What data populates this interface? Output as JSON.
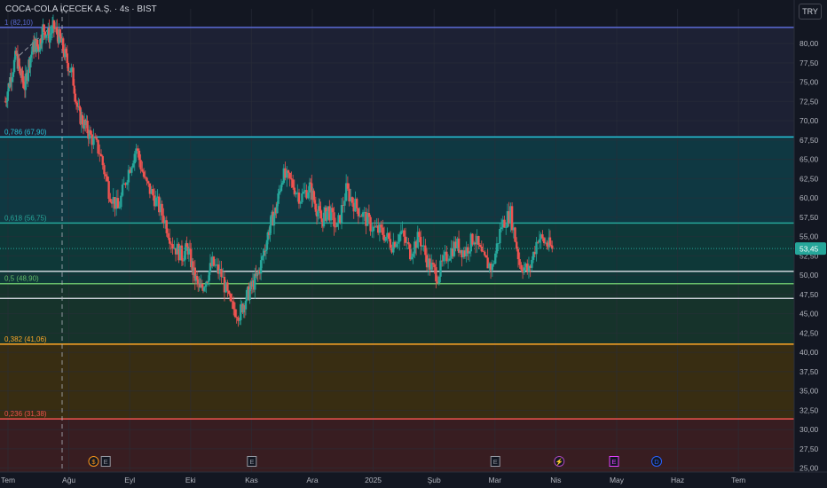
{
  "header": {
    "symbol_title": "COCA-COLA İÇECEK A.Ş. · 4s · BIST",
    "currency_label": "TRY"
  },
  "chart_data": {
    "type": "candlestick",
    "price_axis": {
      "range": [
        24.5,
        84.5
      ],
      "ticks": [
        25,
        27.5,
        30,
        32.5,
        35,
        37.5,
        40,
        42.5,
        45,
        47.5,
        50,
        52.5,
        55,
        57.5,
        60,
        62.5,
        65,
        67.5,
        70,
        72.5,
        75,
        77.5,
        80
      ],
      "tick_labels": [
        "25,00",
        "27,50",
        "30,00",
        "32,50",
        "35,00",
        "37,50",
        "40,00",
        "42,50",
        "45,00",
        "47,50",
        "50,00",
        "52,50",
        "55,00",
        "57,50",
        "60,00",
        "62,50",
        "65,00",
        "67,50",
        "70,00",
        "72,50",
        "75,00",
        "77,50",
        "80,00"
      ],
      "last_price": 53.45,
      "last_price_label": "53,45"
    },
    "time_axis": {
      "labels": [
        "Tem",
        "Ağu",
        "Eyl",
        "Eki",
        "Kas",
        "Ara",
        "2025",
        "Şub",
        "Mar",
        "Nis",
        "May",
        "Haz",
        "Tem"
      ],
      "label_positions_month_index": [
        0,
        1,
        2,
        3,
        4,
        5,
        6,
        7,
        8,
        9,
        10,
        11,
        12
      ]
    },
    "fibonacci": [
      {
        "level": 1,
        "price": 82.1,
        "label": "1 (82,10)",
        "color": "#5b6bd6"
      },
      {
        "level": 0.786,
        "price": 67.9,
        "label": "0,786 (67,90)",
        "color": "#26c6da"
      },
      {
        "level": 0.618,
        "price": 56.75,
        "label": "0,618 (56,75)",
        "color": "#26a69a"
      },
      {
        "level": 0.5,
        "price": 48.9,
        "label": "0,5 (48,90)",
        "color": "#66bb6a"
      },
      {
        "level": 0.382,
        "price": 41.06,
        "label": "0,382 (41,06)",
        "color": "#ffa726"
      },
      {
        "level": 0.236,
        "price": 31.38,
        "label": "0,236 (31,38)",
        "color": "#ef5350"
      }
    ],
    "support_lines": [
      50.5,
      47.0
    ],
    "close_series": {
      "month_index": [
        0,
        0.08,
        0.18,
        0.25,
        0.32,
        0.4,
        0.48,
        0.55,
        0.62,
        0.72,
        0.8,
        0.9,
        1.0,
        1.1,
        1.2,
        1.3,
        1.4,
        1.55,
        1.7,
        1.85,
        2.0,
        2.15,
        2.3,
        2.45,
        2.6,
        2.75,
        2.9,
        3.0,
        3.1,
        3.2,
        3.3,
        3.4,
        3.55,
        3.7,
        3.85,
        3.95,
        4.05,
        4.15,
        4.25,
        4.35,
        4.45,
        4.55,
        4.7,
        4.85,
        5.0,
        5.1,
        5.2,
        5.3,
        5.45,
        5.6,
        5.75,
        5.9,
        6.05,
        6.2,
        6.35,
        6.5,
        6.65,
        6.8,
        6.95,
        7.1,
        7.25,
        7.4,
        7.55,
        7.7,
        7.85,
        8.0,
        8.15,
        8.3,
        8.45,
        8.6,
        8.75,
        8.9,
        9.0
      ],
      "close": [
        72.5,
        75.5,
        78.5,
        76.0,
        74.5,
        78.0,
        80.0,
        79.5,
        82.0,
        81.0,
        82.1,
        80.5,
        78.0,
        76.0,
        71.0,
        69.5,
        68.0,
        66.0,
        61.0,
        58.5,
        63.0,
        66.5,
        62.0,
        60.0,
        57.5,
        54.0,
        52.5,
        53.5,
        50.0,
        48.0,
        49.5,
        51.5,
        50.0,
        46.0,
        45.0,
        47.0,
        48.5,
        50.0,
        53.0,
        56.5,
        58.5,
        63.0,
        62.0,
        60.0,
        61.5,
        59.0,
        57.0,
        58.5,
        56.0,
        61.0,
        59.0,
        57.5,
        56.0,
        55.5,
        54.0,
        55.5,
        53.0,
        55.0,
        51.5,
        50.0,
        52.5,
        54.0,
        53.0,
        55.0,
        52.0,
        51.0,
        56.5,
        58.0,
        51.5,
        50.5,
        55.0,
        54.0,
        53.45
      ]
    },
    "events": [
      {
        "symbol": "$",
        "month_index": 1.45,
        "color": "#f7931a"
      },
      {
        "symbol": "E",
        "month_index": 1.65,
        "color": "#9598a1"
      },
      {
        "symbol": "E",
        "month_index": 4.05,
        "color": "#9598a1"
      },
      {
        "symbol": "E",
        "month_index": 8.05,
        "color": "#9598a1"
      },
      {
        "symbol": "⚡",
        "month_index": 9.1,
        "color": "#ab47bc"
      },
      {
        "symbol": "E",
        "month_index": 10.0,
        "color": "#e040fb"
      },
      {
        "symbol": "D",
        "month_index": 10.7,
        "color": "#2962ff"
      }
    ],
    "colors": {
      "up": "#26a69a",
      "down": "#ef5350",
      "background": "#131722",
      "axis_text": "#b2b5be",
      "last_price_badge": "#26a69a"
    }
  }
}
